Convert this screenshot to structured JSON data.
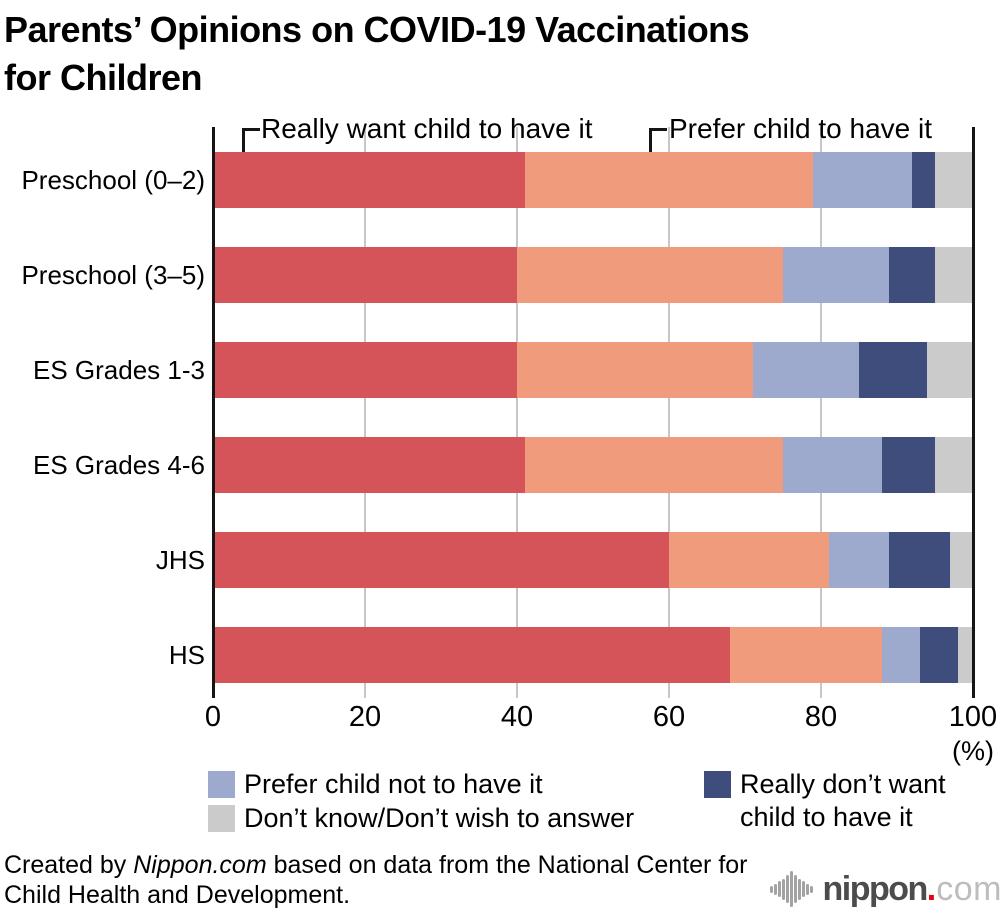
{
  "title": {
    "line1": "Parents’ Opinions on COVID-19 Vaccinations",
    "line2": "for Children"
  },
  "chart_data": {
    "type": "bar",
    "orientation": "horizontal",
    "stacked": true,
    "unit": "%",
    "categories": [
      "Preschool (0–2)",
      "Preschool (3–5)",
      "ES Grades 1-3",
      "ES Grades 4-6",
      "JHS",
      "HS"
    ],
    "series": [
      {
        "name": "Really want child to have it",
        "color": "#d45459",
        "values": [
          41,
          40,
          40,
          41,
          60,
          68
        ]
      },
      {
        "name": "Prefer child to have it",
        "color": "#f09b7b",
        "values": [
          38,
          35,
          31,
          34,
          21,
          20
        ]
      },
      {
        "name": "Prefer child not to have it",
        "color": "#9da9cd",
        "values": [
          13,
          14,
          14,
          13,
          8,
          5
        ]
      },
      {
        "name": "Really don’t want child to have it",
        "color": "#3f4d7c",
        "values": [
          3,
          6,
          9,
          7,
          8,
          5
        ]
      },
      {
        "name": "Don’t know/Don’t wish to answer",
        "color": "#cbcbcb",
        "values": [
          5,
          5,
          6,
          5,
          3,
          2
        ]
      }
    ],
    "xlim": [
      0,
      100
    ],
    "x_ticks": [
      0,
      20,
      40,
      60,
      80,
      100
    ],
    "x_axis_unit": "(%)",
    "grid": "vertical",
    "legend_position": "bottom"
  },
  "annotations": {
    "really_want": "Really want child to have it",
    "prefer": "Prefer child to have it"
  },
  "legend": {
    "prefer_not": "Prefer child not to have it",
    "dont_know": "Don’t know/Don’t wish to answer",
    "really_dont_line1": "Really don’t want",
    "really_dont_line2": "child to have it"
  },
  "footer": {
    "credit_prefix": "Created by ",
    "credit_source": "Nippon.com",
    "credit_suffix": " based on data from the National Center for",
    "credit_line2": "Child Health and Development."
  },
  "logo": {
    "wordmark": "nippon",
    "dot": ".",
    "tld": "com"
  }
}
